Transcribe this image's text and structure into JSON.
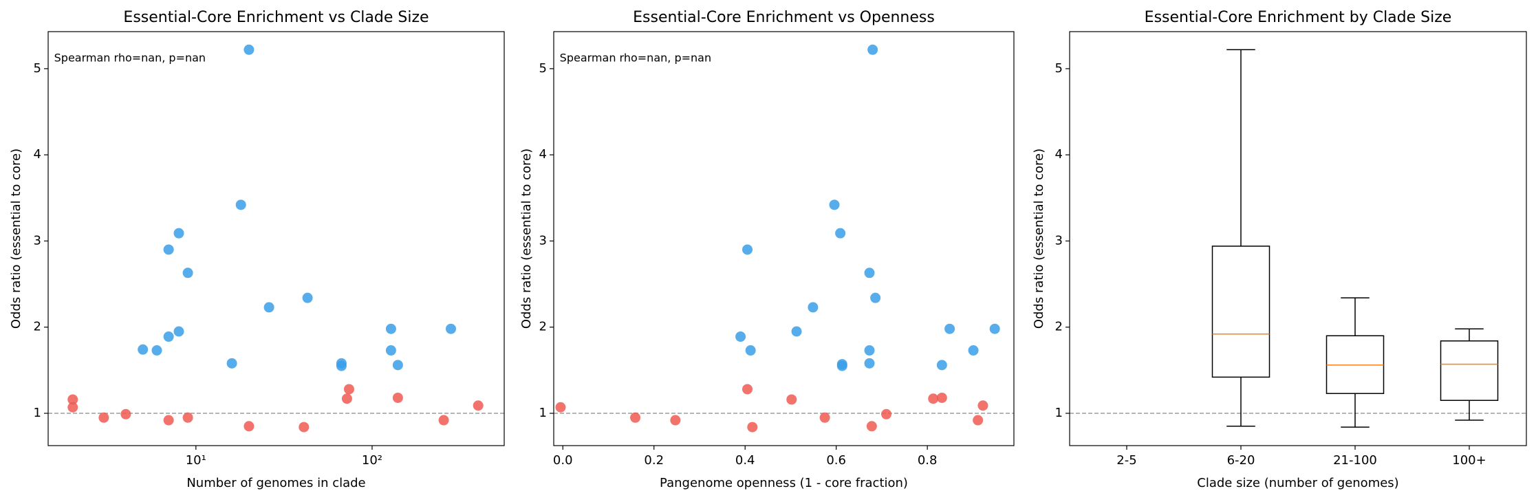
{
  "chart_data": [
    {
      "type": "scatter",
      "title": "Essential-Core Enrichment vs Clade Size",
      "xlabel": "Number of genomes in clade",
      "ylabel": "Odds ratio (essential to core)",
      "annotation": "Spearman rho=nan, p=nan",
      "xscale": "log",
      "xlim": [
        1.45,
        562
      ],
      "xticks": [
        {
          "value": 10,
          "label": "10¹"
        },
        {
          "value": 100,
          "label": "10²"
        }
      ],
      "ylim": [
        0.625,
        5.43
      ],
      "yticks": [
        1,
        2,
        3,
        4,
        5
      ],
      "ref_line": 1,
      "series": [
        {
          "color": "#3a9ee8",
          "x": [
            20,
            18,
            8,
            7,
            9,
            43,
            26,
            128,
            280,
            8,
            7,
            5,
            6,
            128,
            16,
            67,
            67,
            140
          ],
          "values": [
            5.22,
            3.42,
            3.09,
            2.9,
            2.63,
            2.34,
            2.23,
            1.98,
            1.98,
            1.95,
            1.89,
            1.74,
            1.73,
            1.73,
            1.58,
            1.58,
            1.55,
            1.56
          ]
        },
        {
          "color": "#ee5a52",
          "x": [
            2,
            2,
            3,
            4,
            7,
            9,
            20,
            41,
            74,
            72,
            140,
            255,
            400
          ],
          "values": [
            1.16,
            1.07,
            0.95,
            0.99,
            0.92,
            0.95,
            0.85,
            0.84,
            1.28,
            1.17,
            1.18,
            0.92,
            1.09
          ]
        }
      ]
    },
    {
      "type": "scatter",
      "title": "Essential-Core Enrichment vs Openness",
      "xlabel": "Pangenome openness (1 - core fraction)",
      "ylabel": "Odds ratio (essential to core)",
      "annotation": "Spearman rho=nan, p=nan",
      "xscale": "linear",
      "xlim": [
        -0.02,
        0.99
      ],
      "xticks": [
        {
          "value": 0,
          "label": "0.0"
        },
        0.2,
        0.4,
        0.6,
        0.8
      ],
      "ylim": [
        0.625,
        5.43
      ],
      "yticks": [
        1,
        2,
        3,
        4,
        5
      ],
      "ref_line": 1,
      "series": [
        {
          "color": "#3a9ee8",
          "x": [
            0.68,
            0.596,
            0.609,
            0.405,
            0.673,
            0.686,
            0.549,
            0.849,
            0.948,
            0.513,
            0.39,
            0.412,
            0.673,
            0.901,
            0.673,
            0.613,
            0.613,
            0.832
          ],
          "values": [
            5.22,
            3.42,
            3.09,
            2.9,
            2.63,
            2.34,
            2.23,
            1.98,
            1.98,
            1.95,
            1.89,
            1.73,
            1.73,
            1.73,
            1.58,
            1.57,
            1.55,
            1.56
          ]
        },
        {
          "color": "#ee5a52",
          "x": [
            -0.005,
            0.159,
            0.247,
            0.405,
            0.416,
            0.502,
            0.575,
            0.678,
            0.71,
            0.813,
            0.832,
            0.911,
            0.922
          ],
          "values": [
            1.07,
            0.95,
            0.92,
            1.28,
            0.84,
            1.16,
            0.95,
            0.85,
            0.99,
            1.17,
            1.18,
            0.92,
            1.09
          ]
        }
      ]
    },
    {
      "type": "box",
      "title": "Essential-Core Enrichment by Clade Size",
      "xlabel": "Clade size (number of genomes)",
      "ylabel": "Odds ratio (essential to core)",
      "ylim": [
        0.625,
        5.43
      ],
      "yticks": [
        1,
        2,
        3,
        4,
        5
      ],
      "ref_line": 1,
      "color": "#000000",
      "median_color": "#ff7f0e",
      "categories": [
        "2-5",
        "6-20",
        "21-100",
        "100+"
      ],
      "boxes": [
        null,
        {
          "whislo": 0.85,
          "q1": 1.42,
          "med": 1.92,
          "q3": 2.94,
          "whishi": 5.22
        },
        {
          "whislo": 0.84,
          "q1": 1.23,
          "med": 1.56,
          "q3": 1.9,
          "whishi": 2.34
        },
        {
          "whislo": 0.92,
          "q1": 1.15,
          "med": 1.57,
          "q3": 1.84,
          "whishi": 1.98
        }
      ]
    }
  ]
}
